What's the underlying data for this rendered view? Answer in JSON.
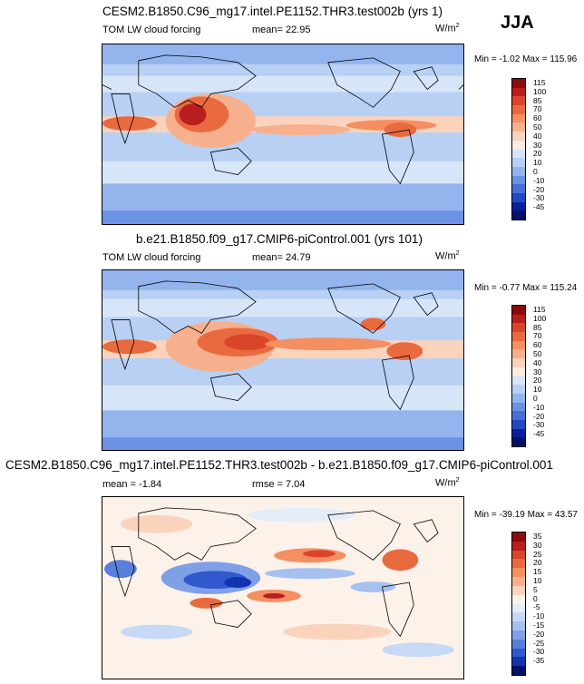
{
  "season": "JJA",
  "panels": [
    {
      "title": "CESM2.B1850.C96_mg17.intel.PE1152.THR3.test002b (yrs 1)",
      "variable": "TOM LW cloud forcing",
      "stat": "mean=  22.95",
      "unit": "W/m",
      "minmax": "Min =  -1.02 Max = 115.96",
      "colorbar": {
        "labels": [
          "115",
          "100",
          "85",
          "70",
          "60",
          "50",
          "40",
          "30",
          "20",
          "10",
          "0",
          "-10",
          "-20",
          "-30",
          "-45"
        ]
      }
    },
    {
      "title": "b.e21.B1850.f09_g17.CMIP6-piControl.001 (yrs 101)",
      "variable": "TOM LW cloud forcing",
      "stat": "mean=  24.79",
      "unit": "W/m",
      "minmax": "Min =  -0.77 Max = 115.24",
      "colorbar": {
        "labels": [
          "115",
          "100",
          "85",
          "70",
          "60",
          "50",
          "40",
          "30",
          "20",
          "10",
          "0",
          "-10",
          "-20",
          "-30",
          "-45"
        ]
      }
    },
    {
      "title": "CESM2.B1850.C96_mg17.intel.PE1152.THR3.test002b - b.e21.B1850.f09_g17.CMIP6-piControl.001",
      "variable": "mean =  -1.84",
      "stat": "rmse =  7.04",
      "unit": "W/m",
      "minmax": "Min = -39.19 Max =  43.57",
      "colorbar": {
        "labels": [
          "35",
          "30",
          "25",
          "20",
          "15",
          "10",
          "5",
          "0",
          "-5",
          "-10",
          "-15",
          "-20",
          "-25",
          "-30",
          "-35"
        ]
      }
    }
  ],
  "colors": {
    "absolute_scale": [
      "#8b0a0a",
      "#b81e1e",
      "#d8452a",
      "#ea6a3f",
      "#f48f62",
      "#f7b08e",
      "#fbd3bd",
      "#fbece2",
      "#d7e5f8",
      "#b8d0f3",
      "#93b4ec",
      "#6c92e3",
      "#4670d8",
      "#2147c4",
      "#0c1f9a",
      "#05106b"
    ],
    "diff_scale": [
      "#8b0a0a",
      "#b81e1e",
      "#d8452a",
      "#ea6a3f",
      "#f48f62",
      "#f7b08e",
      "#fbd3bd",
      "#fdf2ea",
      "#e4ecfa",
      "#c7d9f5",
      "#a6c1ef",
      "#7fa0e6",
      "#587fdc",
      "#3059cd",
      "#1333b0",
      "#05106b"
    ]
  }
}
